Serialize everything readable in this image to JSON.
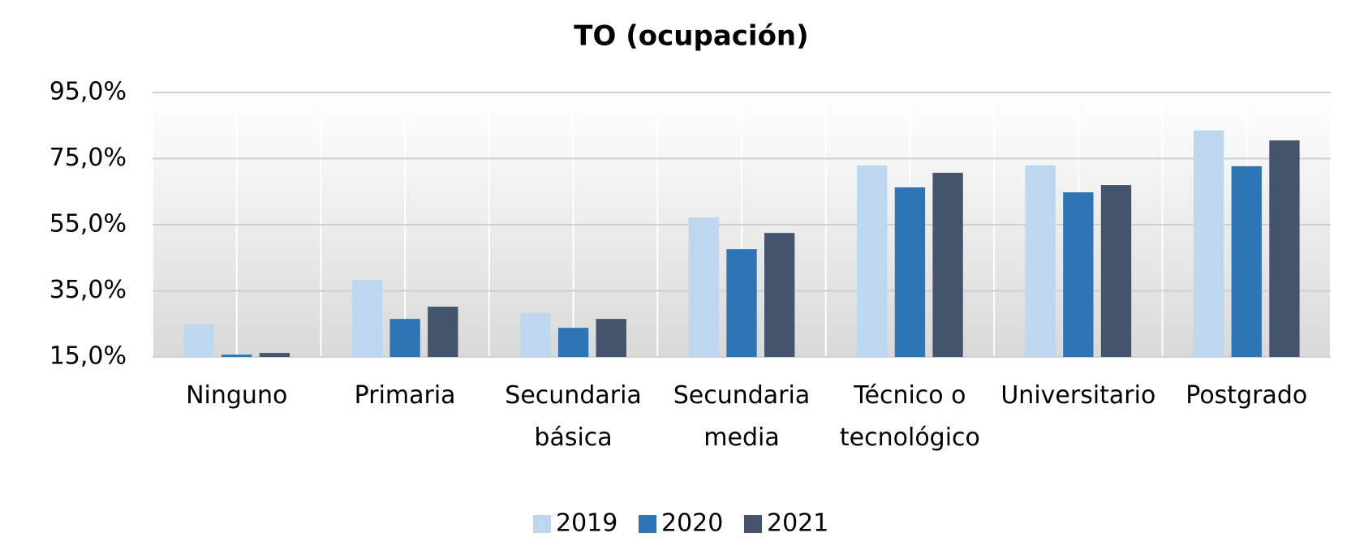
{
  "chart_data": {
    "type": "bar",
    "title": "TO (ocupación)",
    "categories": [
      "Ninguno",
      "Primaria",
      "Secundaria básica",
      "Secundaria media",
      "Técnico o tecnológico",
      "Universitario",
      "Postgrado"
    ],
    "series": [
      {
        "name": "2019",
        "color": "#bdd7ee",
        "values": [
          24.8,
          38.3,
          28.3,
          57.2,
          72.9,
          72.9,
          83.5
        ]
      },
      {
        "name": "2020",
        "color": "#2e75b6",
        "values": [
          15.7,
          26.5,
          23.8,
          47.6,
          66.3,
          64.8,
          72.7
        ]
      },
      {
        "name": "2021",
        "color": "#44546a",
        "values": [
          16.2,
          30.2,
          26.5,
          52.5,
          70.7,
          67.0,
          80.5
        ]
      }
    ],
    "ylim": [
      15,
      95
    ],
    "yticks": [
      {
        "value": 15,
        "label": "15,0%"
      },
      {
        "value": 35,
        "label": "35,0%"
      },
      {
        "value": 55,
        "label": "55,0%"
      },
      {
        "value": 75,
        "label": "75,0%"
      },
      {
        "value": 95,
        "label": "95,0%"
      }
    ],
    "grid": true,
    "legend": "bottom"
  }
}
